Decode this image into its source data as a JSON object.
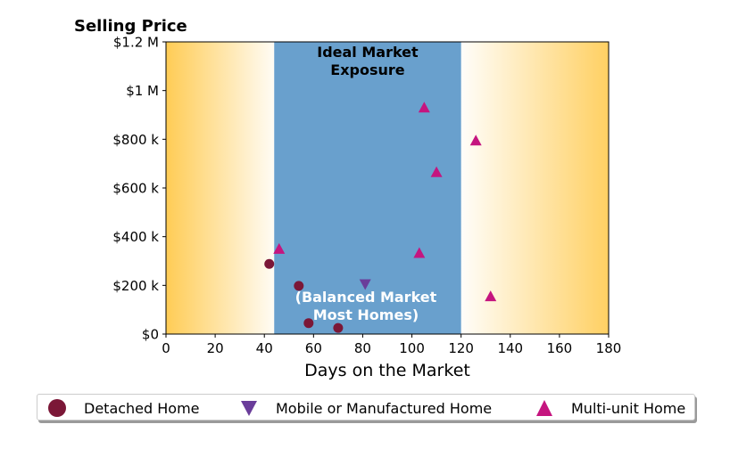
{
  "chart_data": {
    "type": "scatter",
    "title": "Selling Price",
    "xlabel": "Days on the Market",
    "ylabel": "",
    "xlim": [
      0,
      180
    ],
    "ylim": [
      0,
      1200000
    ],
    "xticks": [
      "0",
      "20",
      "40",
      "60",
      "80",
      "100",
      "120",
      "140",
      "160",
      "180"
    ],
    "xtick_values": [
      0,
      20,
      40,
      60,
      80,
      100,
      120,
      140,
      160,
      180
    ],
    "yticks": [
      "$0",
      "$200 k",
      "$400 k",
      "$600 k",
      "$800 k",
      "$1 M",
      "$1.2 M"
    ],
    "ytick_values": [
      0,
      200000,
      400000,
      600000,
      800000,
      1000000,
      1200000
    ],
    "grid": false,
    "legend_position": "bottom",
    "background_band": {
      "x_start": 44,
      "x_end": 120,
      "color": "#69a0cd",
      "label_top": [
        "Ideal Market",
        "Exposure"
      ],
      "label_bottom": [
        "(Balanced Market",
        "Most Homes)"
      ]
    },
    "gradient_color": "#ffcc55",
    "series": [
      {
        "name": "Detached Home",
        "marker": "circle",
        "color": "#7b1737",
        "points": [
          {
            "x": 42,
            "y": 288000
          },
          {
            "x": 54,
            "y": 198000
          },
          {
            "x": 58,
            "y": 45000
          },
          {
            "x": 70,
            "y": 25000
          }
        ]
      },
      {
        "name": "Mobile or Manufactured Home",
        "marker": "triangle-down",
        "color": "#6a3d9a",
        "points": [
          {
            "x": 81,
            "y": 205000
          }
        ]
      },
      {
        "name": "Multi-unit Home",
        "marker": "triangle-up",
        "color": "#c5157f",
        "points": [
          {
            "x": 46,
            "y": 350000
          },
          {
            "x": 103,
            "y": 333000
          },
          {
            "x": 105,
            "y": 930000
          },
          {
            "x": 110,
            "y": 665000
          },
          {
            "x": 126,
            "y": 795000
          },
          {
            "x": 132,
            "y": 155000
          }
        ]
      }
    ]
  }
}
